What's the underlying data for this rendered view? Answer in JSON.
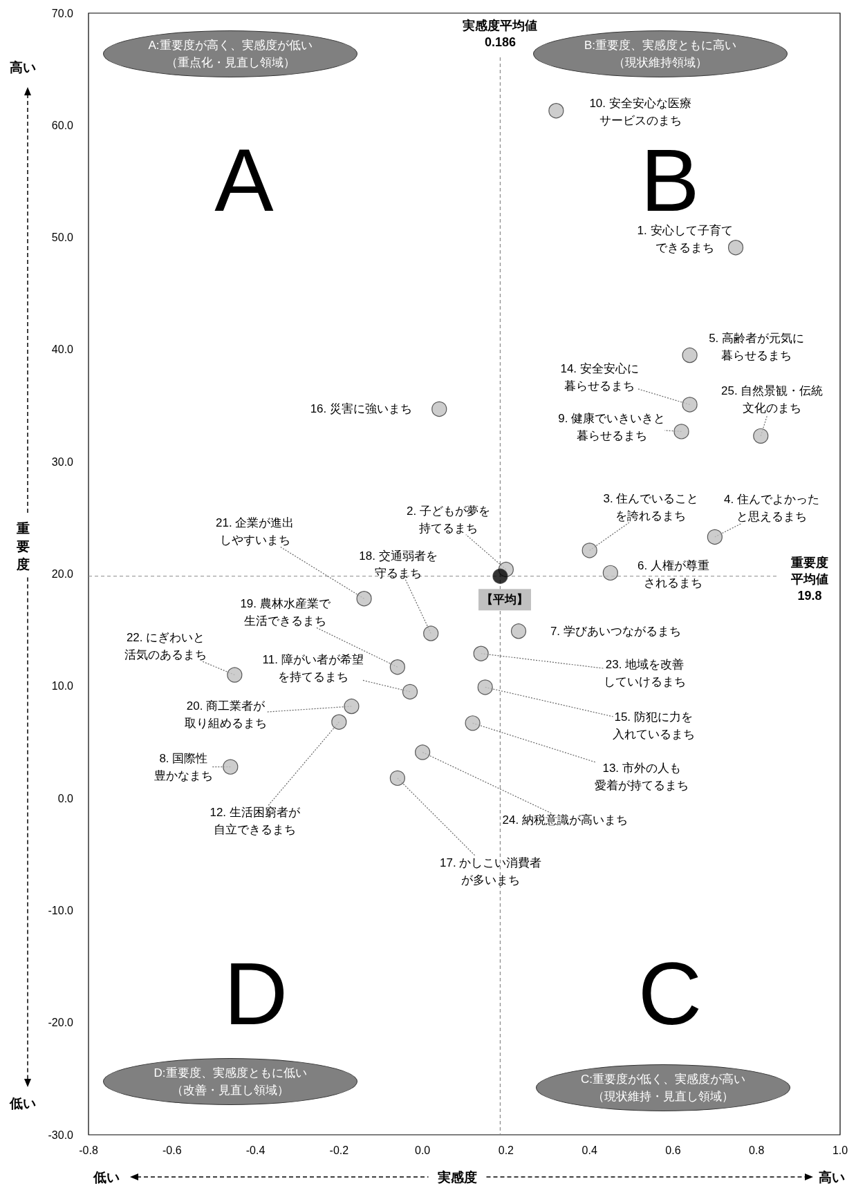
{
  "chart_data": {
    "type": "scatter",
    "xlabel": "実感度",
    "ylabel": "重要度",
    "marker": "circle",
    "grid": false,
    "xlim": [
      -0.8,
      1.0
    ],
    "xticks": [
      {
        "value": -0.8,
        "label": "-0.8"
      },
      {
        "value": -0.6,
        "label": "-0.6"
      },
      {
        "value": -0.4,
        "label": "-0.4"
      },
      {
        "value": -0.2,
        "label": "-0.2"
      },
      {
        "value": 0,
        "label": "0.0"
      },
      {
        "value": 0.2,
        "label": "0.2"
      },
      {
        "value": 0.4,
        "label": "0.4"
      },
      {
        "value": 0.6,
        "label": "0.6"
      },
      {
        "value": 0.8,
        "label": "0.8"
      },
      {
        "value": 1.0,
        "label": "1.0"
      }
    ],
    "ylim": [
      -30,
      70
    ],
    "yticks": [
      {
        "value": -30,
        "label": "-30.0"
      },
      {
        "value": -20,
        "label": "-20.0"
      },
      {
        "value": -10,
        "label": "-10.0"
      },
      {
        "value": 0,
        "label": "0.0"
      },
      {
        "value": 10,
        "label": "10.0"
      },
      {
        "value": 20,
        "label": "20.0"
      },
      {
        "value": 30,
        "label": "30.0"
      },
      {
        "value": 40,
        "label": "40.0"
      },
      {
        "value": 50,
        "label": "50.0"
      },
      {
        "value": 60,
        "label": "60.0"
      },
      {
        "value": 70,
        "label": "70.0"
      }
    ],
    "series": [
      {
        "color": "#c0c0c0",
        "x": [
          0.75,
          0.2,
          0.4,
          0.7,
          0.64,
          0.45,
          0.23,
          -0.46,
          0.62,
          0.32,
          -0.03,
          -0.2,
          0.12,
          0.64,
          0.15,
          0.04,
          -0.06,
          0.02,
          -0.06,
          -0.17,
          -0.14,
          -0.45,
          0.14,
          0.0,
          0.81
        ],
        "values": [
          49.1,
          20.4,
          22.1,
          23.3,
          39.5,
          20.1,
          14.9,
          2.8,
          32.7,
          61.3,
          9.5,
          6.8,
          6.7,
          35.1,
          9.9,
          34.7,
          1.8,
          14.7,
          11.7,
          8.2,
          17.8,
          11.0,
          12.9,
          4.1,
          32.3
        ]
      },
      {
        "color": "#000000",
        "x": [
          0.186
        ],
        "values": [
          19.8
        ]
      }
    ],
    "ref_lines": [
      {
        "axis": "x",
        "value": 0.186,
        "label": "実感度平均値0.186",
        "color": "#888888",
        "line_style": "dashed"
      },
      {
        "axis": "y",
        "value": 19.8,
        "label": "重要度平均値19.8",
        "color": "#888888",
        "line_style": "dashed"
      }
    ],
    "annotations": [
      {
        "text": "1. 安心して子育てできるまち",
        "x": 0.75,
        "y": 49.1
      },
      {
        "text": "2. 子どもが夢を持てるまち",
        "x": 0.2,
        "y": 20.4
      },
      {
        "text": "3. 住んでいることを誇れるまち",
        "x": 0.4,
        "y": 22.1
      },
      {
        "text": "4. 住んでよかったと思えるまち",
        "x": 0.7,
        "y": 23.3
      },
      {
        "text": "5. 高齢者が元気に暮らせるまち",
        "x": 0.64,
        "y": 39.5
      },
      {
        "text": "6. 人権が尊重されるまち",
        "x": 0.45,
        "y": 20.1
      },
      {
        "text": "7. 学びあいつながるまち",
        "x": 0.23,
        "y": 14.9
      },
      {
        "text": "8. 国際性豊かなまち",
        "x": -0.46,
        "y": 2.8
      },
      {
        "text": "9. 健康でいきいきと暮らせるまち",
        "x": 0.62,
        "y": 32.7
      },
      {
        "text": "10. 安全安心な医療サービスのまち",
        "x": 0.32,
        "y": 61.3
      },
      {
        "text": "11. 障がい者が希望を持てるまち",
        "x": -0.03,
        "y": 9.5
      },
      {
        "text": "12. 生活困窮者が自立できるまち",
        "x": -0.2,
        "y": 6.8
      },
      {
        "text": "13. 市外の人も愛着が持てるまち",
        "x": 0.12,
        "y": 6.7
      },
      {
        "text": "14. 安全安心に暮らせるまち",
        "x": 0.64,
        "y": 35.1
      },
      {
        "text": "15. 防犯に力を入れているまち",
        "x": 0.15,
        "y": 9.9
      },
      {
        "text": "16. 災害に強いまち",
        "x": 0.04,
        "y": 34.7
      },
      {
        "text": "17. かしこい消費者が多いまち",
        "x": -0.06,
        "y": 1.8
      },
      {
        "text": "18. 交通弱者を守るまち",
        "x": 0.02,
        "y": 14.7
      },
      {
        "text": "19. 農林水産業で生活できるまち",
        "x": -0.06,
        "y": 11.7
      },
      {
        "text": "20. 商工業者が取り組めるまち",
        "x": -0.17,
        "y": 8.2
      },
      {
        "text": "21. 企業が進出しやすいまち",
        "x": -0.14,
        "y": 17.8
      },
      {
        "text": "22. にぎわいと活気のあるまち",
        "x": -0.45,
        "y": 11.0
      },
      {
        "text": "23. 地域を改善していけるまち",
        "x": 0.14,
        "y": 12.9
      },
      {
        "text": "24. 納税意識が高いまち",
        "x": 0.0,
        "y": 4.1
      },
      {
        "text": "25. 自然景観・伝統文化のまち",
        "x": 0.81,
        "y": 32.3
      },
      {
        "text": "【平均】",
        "x": 0.186,
        "y": 19.8
      },
      "A:重要度が高く、実感度が低い（重点化・見直し領域）",
      "B:重要度、実感度ともに高い（現状維持領域）",
      "D:重要度、実感度ともに低い（改善・見直し領域）",
      "C:重要度が低く、実感度が高い（現状維持・見直し領域）",
      "A",
      "B",
      "D",
      "C",
      "高い",
      "低い",
      "低い",
      "高い"
    ]
  }
}
